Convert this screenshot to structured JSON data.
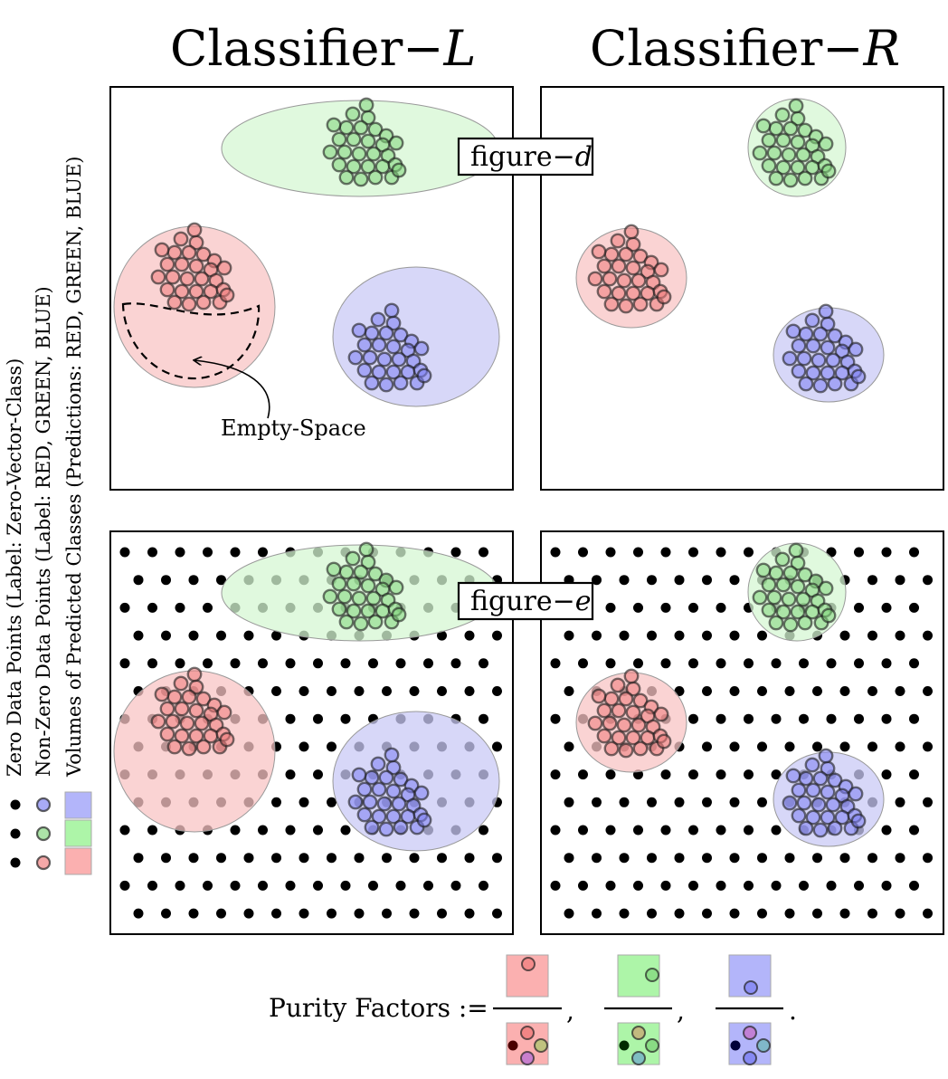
{
  "titles": {
    "left": "Classifier−",
    "left_var": "L",
    "right": "Classifier−",
    "right_var": "R"
  },
  "figure_labels": {
    "d": "figure−",
    "d_var": "d",
    "e": "figure−",
    "e_var": "e"
  },
  "annotation": "Empty-Space",
  "legend": {
    "zero_points": "Zero Data Points (Label: Zero-Vector-Class)",
    "nonzero_points": "Non-Zero Data Points (Label: RED, GREEN, BLUE)",
    "volumes": "Volumes of Predicted Classes (Predictions: RED, GREEN, BLUE)"
  },
  "purity": {
    "label": "Purity Factors :=",
    "separator": ",",
    "terminator": "."
  },
  "colors": {
    "red_fill": "#f8c4c4",
    "green_fill": "#d6f7d3",
    "blue_fill": "#c9caf5",
    "red_point": "#ef7a7a",
    "green_point": "#7fd67a",
    "blue_point": "#7b7ef2",
    "zero_point": "#000000",
    "frame": "#000000"
  },
  "classes": [
    "RED",
    "GREEN",
    "BLUE"
  ]
}
